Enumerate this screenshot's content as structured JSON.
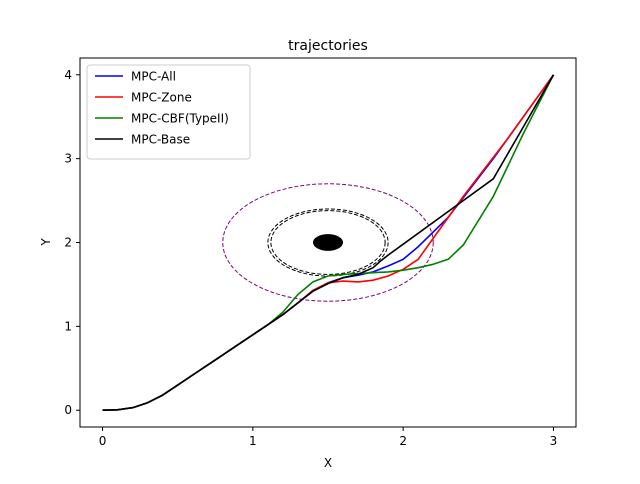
{
  "chart_data": {
    "type": "line",
    "title": "trajectories",
    "xlabel": "X",
    "ylabel": "Y",
    "xlim": [
      -0.15,
      3.15
    ],
    "ylim": [
      -0.2,
      4.2
    ],
    "xticks": [
      0,
      1,
      2,
      3
    ],
    "yticks": [
      0,
      1,
      2,
      3,
      4
    ],
    "grid": false,
    "legend_position": "upper-left",
    "series": [
      {
        "name": "MPC-All",
        "color": "#0000ff",
        "points": [
          [
            0,
            0
          ],
          [
            0.1,
            0.005
          ],
          [
            0.2,
            0.03
          ],
          [
            0.3,
            0.09
          ],
          [
            0.4,
            0.18
          ],
          [
            0.5,
            0.3
          ],
          [
            0.6,
            0.42
          ],
          [
            0.7,
            0.54
          ],
          [
            0.8,
            0.66
          ],
          [
            0.9,
            0.78
          ],
          [
            1.0,
            0.9
          ],
          [
            1.1,
            1.02
          ],
          [
            1.2,
            1.14
          ],
          [
            1.3,
            1.28
          ],
          [
            1.4,
            1.42
          ],
          [
            1.5,
            1.52
          ],
          [
            1.6,
            1.58
          ],
          [
            1.7,
            1.61
          ],
          [
            1.8,
            1.65
          ],
          [
            1.9,
            1.72
          ],
          [
            2.0,
            1.8
          ],
          [
            2.1,
            1.95
          ],
          [
            2.3,
            2.3
          ],
          [
            2.6,
            3.0
          ],
          [
            3.0,
            4.0
          ]
        ]
      },
      {
        "name": "MPC-Zone",
        "color": "#ff0000",
        "points": [
          [
            0,
            0
          ],
          [
            0.1,
            0.005
          ],
          [
            0.2,
            0.03
          ],
          [
            0.3,
            0.09
          ],
          [
            0.4,
            0.18
          ],
          [
            0.5,
            0.3
          ],
          [
            0.6,
            0.42
          ],
          [
            0.7,
            0.54
          ],
          [
            0.8,
            0.66
          ],
          [
            0.9,
            0.78
          ],
          [
            1.0,
            0.9
          ],
          [
            1.1,
            1.02
          ],
          [
            1.2,
            1.14
          ],
          [
            1.3,
            1.28
          ],
          [
            1.4,
            1.43
          ],
          [
            1.5,
            1.52
          ],
          [
            1.6,
            1.54
          ],
          [
            1.7,
            1.53
          ],
          [
            1.8,
            1.55
          ],
          [
            1.9,
            1.6
          ],
          [
            2.0,
            1.68
          ],
          [
            2.1,
            1.8
          ],
          [
            2.18,
            2.0
          ],
          [
            2.4,
            2.55
          ],
          [
            2.7,
            3.25
          ],
          [
            3.0,
            4.0
          ]
        ]
      },
      {
        "name": "MPC-CBF(TypeII)",
        "color": "#008000",
        "points": [
          [
            0,
            0
          ],
          [
            0.1,
            0.005
          ],
          [
            0.2,
            0.03
          ],
          [
            0.3,
            0.09
          ],
          [
            0.4,
            0.18
          ],
          [
            0.5,
            0.3
          ],
          [
            0.6,
            0.42
          ],
          [
            0.7,
            0.54
          ],
          [
            0.8,
            0.66
          ],
          [
            0.9,
            0.78
          ],
          [
            1.0,
            0.9
          ],
          [
            1.1,
            1.02
          ],
          [
            1.2,
            1.17
          ],
          [
            1.3,
            1.38
          ],
          [
            1.4,
            1.53
          ],
          [
            1.5,
            1.6
          ],
          [
            1.6,
            1.62
          ],
          [
            1.7,
            1.63
          ],
          [
            1.8,
            1.64
          ],
          [
            1.9,
            1.65
          ],
          [
            2.0,
            1.67
          ],
          [
            2.1,
            1.7
          ],
          [
            2.2,
            1.74
          ],
          [
            2.3,
            1.8
          ],
          [
            2.4,
            1.97
          ],
          [
            2.6,
            2.55
          ],
          [
            2.8,
            3.3
          ],
          [
            3.0,
            4.0
          ]
        ]
      },
      {
        "name": "MPC-Base",
        "color": "#000000",
        "points": [
          [
            0,
            0
          ],
          [
            0.1,
            0.005
          ],
          [
            0.2,
            0.03
          ],
          [
            0.3,
            0.09
          ],
          [
            0.4,
            0.18
          ],
          [
            0.5,
            0.3
          ],
          [
            0.6,
            0.42
          ],
          [
            0.7,
            0.54
          ],
          [
            0.8,
            0.66
          ],
          [
            0.9,
            0.78
          ],
          [
            1.0,
            0.9
          ],
          [
            1.1,
            1.02
          ],
          [
            1.2,
            1.14
          ],
          [
            1.3,
            1.28
          ],
          [
            1.4,
            1.42
          ],
          [
            1.5,
            1.51
          ],
          [
            1.6,
            1.58
          ],
          [
            1.7,
            1.62
          ],
          [
            1.8,
            1.7
          ],
          [
            1.85,
            1.78
          ],
          [
            1.9,
            1.85
          ],
          [
            2.0,
            1.98
          ],
          [
            2.3,
            2.37
          ],
          [
            2.6,
            2.76
          ],
          [
            3.0,
            4.0
          ]
        ]
      }
    ],
    "obstacle": {
      "center": [
        1.5,
        2.0
      ],
      "radius_x": 0.1,
      "radius_y": 0.1,
      "color": "#000000"
    },
    "boundary_circles": [
      {
        "center": [
          1.5,
          2.0
        ],
        "radius": 0.4,
        "color": "#000000",
        "style": "dashed"
      },
      {
        "center": [
          1.5,
          2.0
        ],
        "radius": 0.38,
        "color": "#000000",
        "style": "dashed"
      },
      {
        "center": [
          1.5,
          2.0
        ],
        "radius": 0.7,
        "color": "#800080",
        "style": "dashed"
      }
    ]
  }
}
